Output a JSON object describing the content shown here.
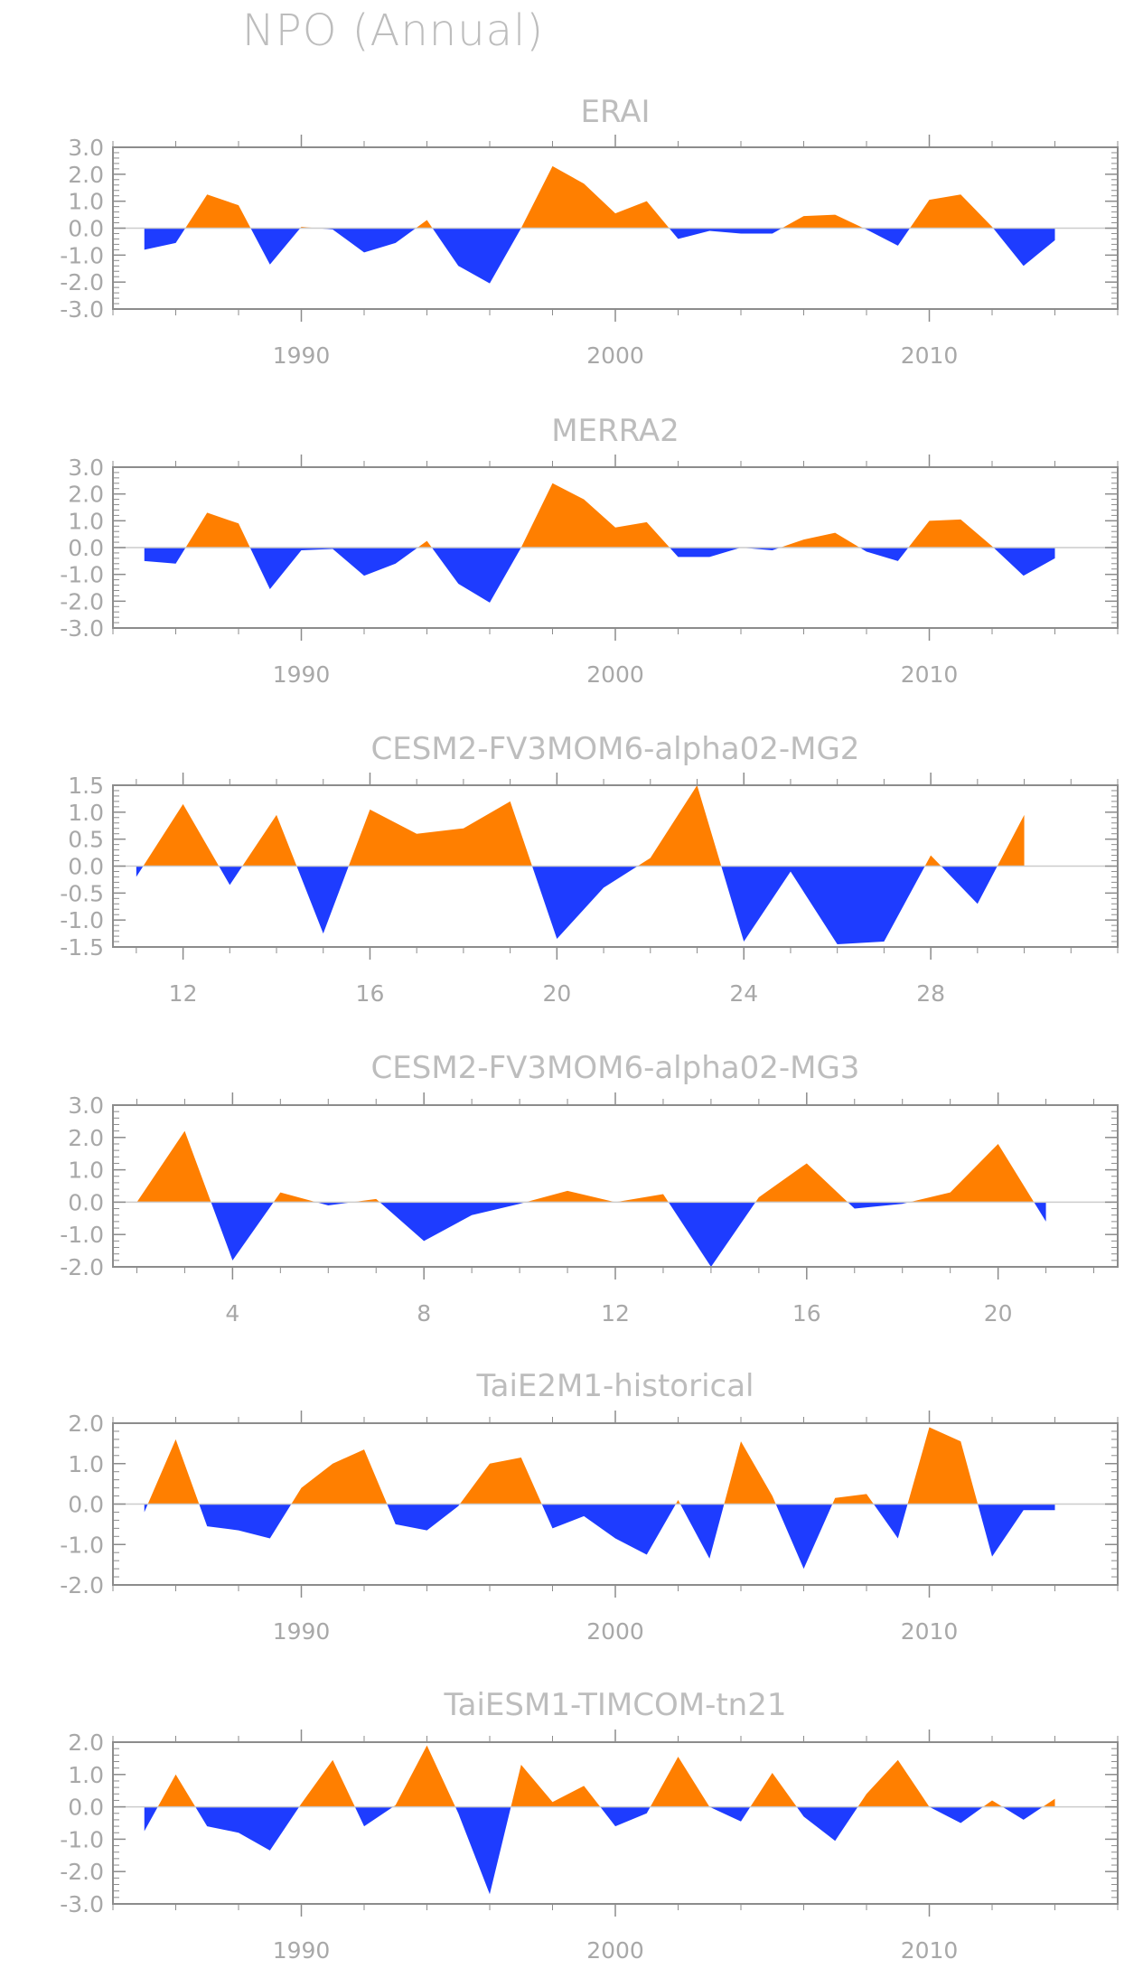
{
  "page_title": "NPO (Annual)",
  "colors": {
    "positive": "#FF7F00",
    "negative": "#1E3CFF",
    "axis": "#8c8c8c",
    "zero_line": "#cccccc",
    "text": "#bdbdbd"
  },
  "chart_data": [
    {
      "type": "area",
      "title": "ERAI",
      "xlabel": "",
      "ylabel": "",
      "xlim": [
        1984,
        2016
      ],
      "ylim": [
        -3.0,
        3.0
      ],
      "xticks": [
        1990,
        2000,
        2010
      ],
      "xtick_labels": [
        "1990",
        "2000",
        "2010"
      ],
      "yticks": [
        3.0,
        2.0,
        1.0,
        0.0,
        -1.0,
        -2.0,
        -3.0
      ],
      "ytick_labels": [
        "3.0",
        "2.0",
        "1.0",
        "0.0",
        "-1.0",
        "-2.0",
        "-3.0"
      ],
      "x": [
        1985,
        1986,
        1987,
        1988,
        1989,
        1990,
        1991,
        1992,
        1993,
        1994,
        1995,
        1996,
        1997,
        1998,
        1999,
        2000,
        2001,
        2002,
        2003,
        2004,
        2005,
        2006,
        2007,
        2008,
        2009,
        2010,
        2011,
        2012,
        2013,
        2014
      ],
      "values": [
        -0.8,
        -0.55,
        1.25,
        0.85,
        -1.35,
        0.05,
        -0.05,
        -0.9,
        -0.55,
        0.3,
        -1.4,
        -2.05,
        0.0,
        2.3,
        1.65,
        0.55,
        1.0,
        -0.4,
        -0.1,
        -0.2,
        -0.2,
        0.45,
        0.5,
        -0.05,
        -0.65,
        1.05,
        1.25,
        0.05,
        -1.4,
        -0.45
      ]
    },
    {
      "type": "area",
      "title": "MERRA2",
      "xlabel": "",
      "ylabel": "",
      "xlim": [
        1984,
        2016
      ],
      "ylim": [
        -3.0,
        3.0
      ],
      "xticks": [
        1990,
        2000,
        2010
      ],
      "xtick_labels": [
        "1990",
        "2000",
        "2010"
      ],
      "yticks": [
        3.0,
        2.0,
        1.0,
        0.0,
        -1.0,
        -2.0,
        -3.0
      ],
      "ytick_labels": [
        "3.0",
        "2.0",
        "1.0",
        "0.0",
        "-1.0",
        "-2.0",
        "-3.0"
      ],
      "x": [
        1985,
        1986,
        1987,
        1988,
        1989,
        1990,
        1991,
        1992,
        1993,
        1994,
        1995,
        1996,
        1997,
        1998,
        1999,
        2000,
        2001,
        2002,
        2003,
        2004,
        2005,
        2006,
        2007,
        2008,
        2009,
        2010,
        2011,
        2012,
        2013,
        2014
      ],
      "values": [
        -0.5,
        -0.6,
        1.3,
        0.9,
        -1.55,
        -0.1,
        -0.05,
        -1.05,
        -0.6,
        0.25,
        -1.35,
        -2.05,
        0.0,
        2.4,
        1.8,
        0.75,
        0.95,
        -0.35,
        -0.35,
        0.0,
        -0.1,
        0.3,
        0.55,
        -0.15,
        -0.5,
        1.0,
        1.05,
        0.05,
        -1.05,
        -0.4
      ]
    },
    {
      "type": "area",
      "title": "CESM2-FV3MOM6-alpha02-MG2",
      "xlabel": "",
      "ylabel": "",
      "xlim": [
        10.5,
        32
      ],
      "ylim": [
        -1.5,
        1.5
      ],
      "xticks": [
        12,
        16,
        20,
        24,
        28
      ],
      "xtick_labels": [
        "12",
        "16",
        "20",
        "24",
        "28"
      ],
      "yticks": [
        1.5,
        1.0,
        0.5,
        0.0,
        -0.5,
        -1.0,
        -1.5
      ],
      "ytick_labels": [
        "1.5",
        "1.0",
        "0.5",
        "0.0",
        "-0.5",
        "-1.0",
        "-1.5"
      ],
      "x": [
        11,
        12,
        13,
        14,
        15,
        16,
        17,
        18,
        19,
        20,
        21,
        22,
        23,
        24,
        25,
        26,
        27,
        28,
        29,
        30
      ],
      "values": [
        -0.2,
        1.15,
        -0.35,
        0.95,
        -1.25,
        1.05,
        0.6,
        0.7,
        1.2,
        -1.35,
        -0.4,
        0.15,
        1.5,
        -1.4,
        -0.1,
        -1.45,
        -1.4,
        0.2,
        -0.7,
        0.95
      ]
    },
    {
      "type": "area",
      "title": "CESM2-FV3MOM6-alpha02-MG3",
      "xlabel": "",
      "ylabel": "",
      "xlim": [
        1.5,
        22.5
      ],
      "ylim": [
        -2.0,
        3.0
      ],
      "xticks": [
        4,
        8,
        12,
        16,
        20
      ],
      "xtick_labels": [
        "4",
        "8",
        "12",
        "16",
        "20"
      ],
      "yticks": [
        3.0,
        2.0,
        1.0,
        0.0,
        -1.0,
        -2.0
      ],
      "ytick_labels": [
        "3.0",
        "2.0",
        "1.0",
        "0.0",
        "-1.0",
        "-2.0"
      ],
      "x": [
        2,
        3,
        4,
        5,
        6,
        7,
        8,
        9,
        10,
        11,
        12,
        13,
        14,
        15,
        16,
        17,
        18,
        19,
        20,
        21
      ],
      "values": [
        0.0,
        2.2,
        -1.8,
        0.3,
        -0.1,
        0.1,
        -1.2,
        -0.4,
        -0.05,
        0.35,
        0.0,
        0.25,
        -2.0,
        0.15,
        1.2,
        -0.2,
        -0.05,
        0.3,
        1.8,
        -0.6
      ]
    },
    {
      "type": "area",
      "title": "TaiE2M1-historical",
      "xlabel": "",
      "ylabel": "",
      "xlim": [
        1984,
        2016
      ],
      "ylim": [
        -2.0,
        2.0
      ],
      "xticks": [
        1990,
        2000,
        2010
      ],
      "xtick_labels": [
        "1990",
        "2000",
        "2010"
      ],
      "yticks": [
        2.0,
        1.0,
        0.0,
        -1.0,
        -2.0
      ],
      "ytick_labels": [
        "2.0",
        "1.0",
        "0.0",
        "-1.0",
        "-2.0"
      ],
      "x": [
        1985,
        1986,
        1987,
        1988,
        1989,
        1990,
        1991,
        1992,
        1993,
        1994,
        1995,
        1996,
        1997,
        1998,
        1999,
        2000,
        2001,
        2002,
        2003,
        2004,
        2005,
        2006,
        2007,
        2008,
        2009,
        2010,
        2011,
        2012,
        2013,
        2014
      ],
      "values": [
        -0.2,
        1.6,
        -0.55,
        -0.65,
        -0.85,
        0.4,
        1.0,
        1.35,
        -0.5,
        -0.65,
        -0.05,
        1.0,
        1.15,
        -0.6,
        -0.3,
        -0.85,
        -1.25,
        0.1,
        -1.35,
        1.55,
        0.2,
        -1.6,
        0.15,
        0.25,
        -0.85,
        1.9,
        1.55,
        -1.3,
        -0.15,
        -0.15
      ]
    },
    {
      "type": "area",
      "title": "TaiESM1-TIMCOM-tn21",
      "xlabel": "",
      "ylabel": "",
      "xlim": [
        1984,
        2016
      ],
      "ylim": [
        -3.0,
        2.0
      ],
      "xticks": [
        1990,
        2000,
        2010
      ],
      "xtick_labels": [
        "1990",
        "2000",
        "2010"
      ],
      "yticks": [
        2.0,
        1.0,
        0.0,
        -1.0,
        -2.0,
        -3.0
      ],
      "ytick_labels": [
        "2.0",
        "1.0",
        "0.0",
        "-1.0",
        "-2.0",
        "-3.0"
      ],
      "x": [
        1985,
        1986,
        1987,
        1988,
        1989,
        1990,
        1991,
        1992,
        1993,
        1994,
        1995,
        1996,
        1997,
        1998,
        1999,
        2000,
        2001,
        2002,
        2003,
        2004,
        2005,
        2006,
        2007,
        2008,
        2009,
        2010,
        2011,
        2012,
        2013,
        2014
      ],
      "values": [
        -0.75,
        1.0,
        -0.6,
        -0.8,
        -1.35,
        0.1,
        1.45,
        -0.6,
        0.05,
        1.9,
        -0.2,
        -2.7,
        1.3,
        0.15,
        0.65,
        -0.6,
        -0.2,
        1.55,
        0.0,
        -0.45,
        1.05,
        -0.3,
        -1.05,
        0.4,
        1.45,
        0.0,
        -0.5,
        0.2,
        -0.4,
        0.25
      ]
    }
  ]
}
